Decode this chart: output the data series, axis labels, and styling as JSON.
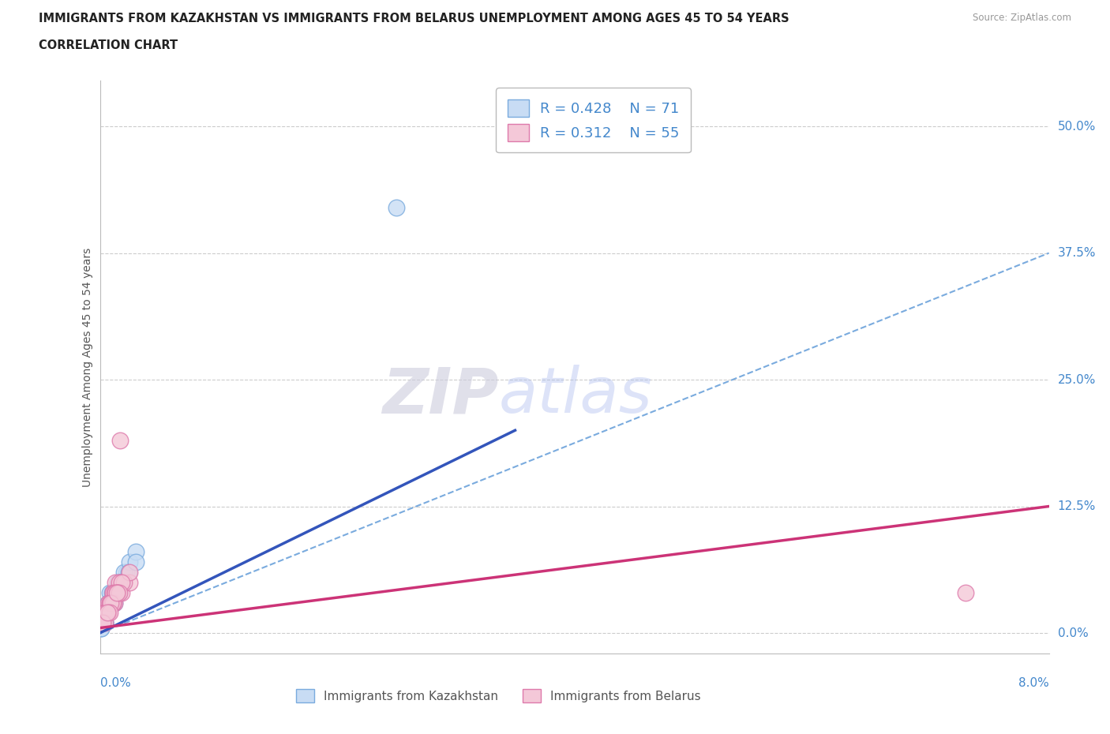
{
  "title_line1": "IMMIGRANTS FROM KAZAKHSTAN VS IMMIGRANTS FROM BELARUS UNEMPLOYMENT AMONG AGES 45 TO 54 YEARS",
  "title_line2": "CORRELATION CHART",
  "source": "Source: ZipAtlas.com",
  "ylabel_label": "Unemployment Among Ages 45 to 54 years",
  "ytick_labels": [
    "0.0%",
    "12.5%",
    "25.0%",
    "37.5%",
    "50.0%"
  ],
  "ytick_values": [
    0.0,
    0.125,
    0.25,
    0.375,
    0.5
  ],
  "xtick_labels": [
    "0.0%",
    "8.0%"
  ],
  "xmin": 0.0,
  "xmax": 0.08,
  "ymin": -0.02,
  "ymax": 0.545,
  "legend1_label": "Immigrants from Kazakhstan",
  "legend2_label": "Immigrants from Belarus",
  "R1": 0.428,
  "N1": 71,
  "R2": 0.312,
  "N2": 55,
  "color_kaz_fill": "#c8dcf4",
  "color_kaz_edge": "#7aabde",
  "color_bel_fill": "#f4c8d8",
  "color_bel_edge": "#de7aab",
  "color_kaz_line": "#3355bb",
  "color_bel_line": "#cc3377",
  "color_dash": "#7aabde",
  "title_color": "#222222",
  "source_color": "#999999",
  "axis_color": "#4488cc",
  "text_color": "#555555",
  "watermark_color": "#dde8f5",
  "kaz_x": [
    0.025,
    0.0008,
    0.0012,
    0.0005,
    0.0015,
    0.0022,
    0.0008,
    0.001,
    0.0018,
    0.0005,
    0.0007,
    0.0012,
    0.0006,
    0.0009,
    0.0015,
    0.002,
    0.0004,
    0.0008,
    0.0011,
    0.0016,
    0.0003,
    0.0006,
    0.001,
    0.0014,
    0.0019,
    0.0025,
    0.003,
    0.0007,
    0.0013,
    0.0018,
    0.0005,
    0.0009,
    0.0014,
    0.0004,
    0.0008,
    0.0012,
    0.0017,
    0.0006,
    0.0011,
    0.0016,
    0.0004,
    0.0009,
    0.0013,
    0.0005,
    0.0008,
    0.0012,
    0.0018,
    0.0024,
    0.003,
    0.0003,
    0.0007,
    0.0011,
    0.0005,
    0.0009,
    0.0014,
    0.0004,
    0.0007,
    0.0011,
    0.0003,
    0.0006,
    0.0009,
    0.0004,
    0.0001,
    0.0002,
    0.0006,
    0.0008,
    0.0013,
    0.0005,
    0.0003,
    0.0002,
    0.0001
  ],
  "kaz_y": [
    0.42,
    0.04,
    0.03,
    0.02,
    0.05,
    0.06,
    0.03,
    0.04,
    0.05,
    0.02,
    0.03,
    0.04,
    0.02,
    0.03,
    0.04,
    0.06,
    0.02,
    0.03,
    0.04,
    0.05,
    0.01,
    0.02,
    0.03,
    0.04,
    0.05,
    0.07,
    0.08,
    0.03,
    0.04,
    0.05,
    0.02,
    0.03,
    0.04,
    0.02,
    0.03,
    0.04,
    0.05,
    0.02,
    0.03,
    0.04,
    0.01,
    0.03,
    0.04,
    0.02,
    0.03,
    0.04,
    0.05,
    0.06,
    0.07,
    0.01,
    0.02,
    0.03,
    0.02,
    0.03,
    0.04,
    0.01,
    0.02,
    0.03,
    0.01,
    0.02,
    0.03,
    0.01,
    0.005,
    0.01,
    0.02,
    0.03,
    0.04,
    0.02,
    0.01,
    0.01,
    0.005
  ],
  "bel_x": [
    0.073,
    0.0006,
    0.0012,
    0.0018,
    0.0025,
    0.0005,
    0.0009,
    0.0015,
    0.0008,
    0.0011,
    0.0016,
    0.0007,
    0.0013,
    0.0004,
    0.0008,
    0.0012,
    0.0017,
    0.0005,
    0.0009,
    0.0014,
    0.0003,
    0.0007,
    0.0011,
    0.0016,
    0.0006,
    0.001,
    0.0015,
    0.002,
    0.0025,
    0.0004,
    0.0008,
    0.0012,
    0.0018,
    0.0005,
    0.0009,
    0.0014,
    0.0007,
    0.0011,
    0.0004,
    0.0008,
    0.0013,
    0.0006,
    0.001,
    0.0015,
    0.0003,
    0.0007,
    0.0011,
    0.0016,
    0.0005,
    0.0009,
    0.0014,
    0.0004,
    0.0008,
    0.0002,
    0.0006
  ],
  "bel_y": [
    0.04,
    0.02,
    0.03,
    0.04,
    0.05,
    0.02,
    0.03,
    0.04,
    0.03,
    0.04,
    0.05,
    0.02,
    0.05,
    0.02,
    0.03,
    0.04,
    0.19,
    0.02,
    0.03,
    0.04,
    0.02,
    0.03,
    0.04,
    0.05,
    0.02,
    0.03,
    0.04,
    0.05,
    0.06,
    0.02,
    0.03,
    0.04,
    0.05,
    0.02,
    0.03,
    0.04,
    0.02,
    0.03,
    0.02,
    0.03,
    0.04,
    0.02,
    0.03,
    0.04,
    0.01,
    0.02,
    0.03,
    0.04,
    0.02,
    0.03,
    0.04,
    0.01,
    0.02,
    0.01,
    0.02
  ],
  "kaz_line_x0": 0.0,
  "kaz_line_y0": 0.0,
  "kaz_line_x1": 0.035,
  "kaz_line_y1": 0.2,
  "bel_line_x0": 0.0,
  "bel_line_y0": 0.005,
  "bel_line_x1": 0.08,
  "bel_line_y1": 0.125,
  "dash_line_x0": 0.0,
  "dash_line_y0": 0.0,
  "dash_line_x1": 0.08,
  "dash_line_y1": 0.375
}
